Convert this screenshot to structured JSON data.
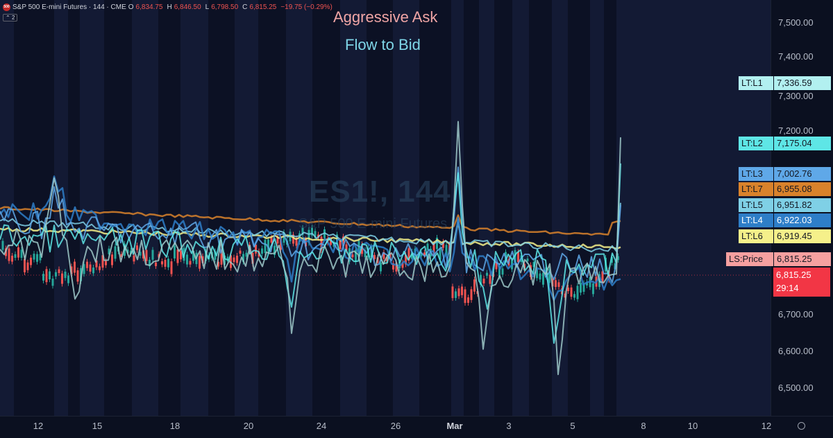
{
  "header": {
    "logo_text": "500",
    "symbol": "S&P 500 E-mini Futures · 144 · CME",
    "o_label": "O",
    "o_value": "6,834.75",
    "h_label": "H",
    "h_value": "6,846.50",
    "l_label": "L",
    "l_value": "6,798.50",
    "c_label": "C",
    "c_value": "6,815.25",
    "change": "−19.75 (−0.29%)",
    "indicator_count": "2",
    "collapse_icon": "chevron-up-icon"
  },
  "overlay": {
    "title_ask": "Aggressive Ask",
    "title_bid": "Flow to Bid",
    "watermark_symbol": "ES1!, 144",
    "watermark_name": "S&P 500 E-mini Futures"
  },
  "y_axis": {
    "ticks": [
      "7,500.00",
      "7,400.00",
      "7,300.00",
      "7,200.00",
      "6,700.00",
      "6,600.00",
      "6,500.00"
    ]
  },
  "x_axis": {
    "ticks": [
      {
        "label": "12",
        "bold": false
      },
      {
        "label": "15",
        "bold": false
      },
      {
        "label": "18",
        "bold": false
      },
      {
        "label": "20",
        "bold": false
      },
      {
        "label": "24",
        "bold": false
      },
      {
        "label": "26",
        "bold": false
      },
      {
        "label": "Mar",
        "bold": true
      },
      {
        "label": "3",
        "bold": false
      },
      {
        "label": "5",
        "bold": false
      },
      {
        "label": "8",
        "bold": false
      },
      {
        "label": "10",
        "bold": false
      },
      {
        "label": "12",
        "bold": false
      }
    ],
    "settings_icon": "gear-icon"
  },
  "price_tags": [
    {
      "label": "LT:L1",
      "value": "7,336.59",
      "color": "#b2f0f0",
      "text_color": "#131722"
    },
    {
      "label": "LT:L2",
      "value": "7,175.04",
      "color": "#5ee6e6",
      "text_color": "#131722"
    },
    {
      "label": "LT:L3",
      "value": "7,002.76",
      "color": "#5fa8e8",
      "text_color": "#131722"
    },
    {
      "label": "LT:L7",
      "value": "6,955.08",
      "color": "#d9822b",
      "text_color": "#131722"
    },
    {
      "label": "LT:L5",
      "value": "6,951.82",
      "color": "#7fd0e6",
      "text_color": "#131722"
    },
    {
      "label": "LT:L4",
      "value": "6,922.03",
      "color": "#2e7ec8",
      "text_color": "#ffffff"
    },
    {
      "label": "LT:L6",
      "value": "6,919.45",
      "color": "#f5f08a",
      "text_color": "#131722"
    },
    {
      "label": "LS:Price",
      "value": "6,815.25",
      "color": "#f6a0a0",
      "text_color": "#131722"
    }
  ],
  "last_price": {
    "value": "6,815.25",
    "countdown": "29:14",
    "color": "#f23645"
  },
  "colors": {
    "background": "#0c1124",
    "session_band": "#131a34",
    "up_candle": "#26a69a",
    "down_candle": "#ef5350"
  }
}
